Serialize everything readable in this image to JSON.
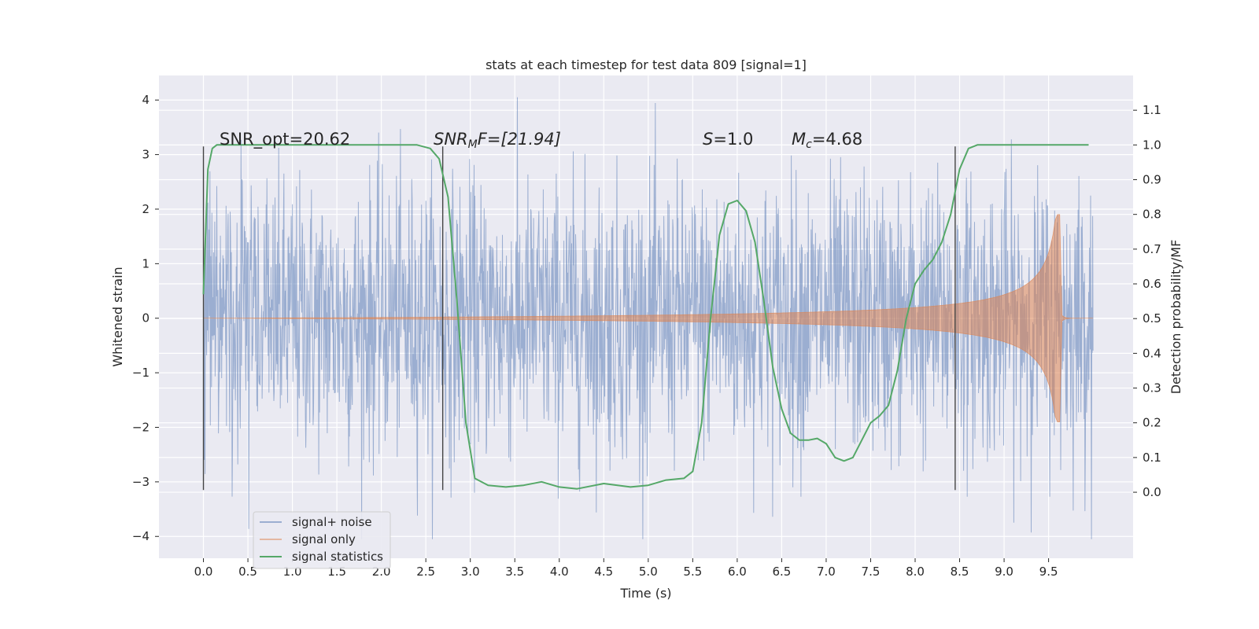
{
  "chart_data": {
    "type": "line",
    "title": "stats at each timestep for test data 809 [signal=1]",
    "xlabel": "Time (s)",
    "ylabel_left": "Whitened strain",
    "ylabel_right": "Detection probability/MF",
    "xlim": [
      -0.5,
      10.45
    ],
    "ylim_left": [
      -4.4,
      4.45
    ],
    "ylim_right": [
      -0.19,
      1.2
    ],
    "x_ticks": [
      "0.0",
      "0.5",
      "1.0",
      "1.5",
      "2.0",
      "2.5",
      "3.0",
      "3.5",
      "4.0",
      "4.5",
      "5.0",
      "5.5",
      "6.0",
      "6.5",
      "7.0",
      "7.5",
      "8.0",
      "8.5",
      "9.0",
      "9.5"
    ],
    "y_left_ticks": [
      "4",
      "3",
      "2",
      "1",
      "0",
      "−1",
      "−2",
      "−3",
      "−4"
    ],
    "y_right_ticks": [
      "1.1",
      "1.0",
      "0.9",
      "0.8",
      "0.7",
      "0.6",
      "0.5",
      "0.4",
      "0.3",
      "0.2",
      "0.1",
      "0.0"
    ],
    "grid": true,
    "legend_position": "lower-left",
    "annotations": {
      "snr_opt": "SNR_opt=20.62",
      "snr_mf_main": "SNR",
      "snr_mf_sub": "M",
      "snr_mf_tail": "F=[21.94]",
      "s_main": "S",
      "s_tail": "=1.0",
      "mc_main": "M",
      "mc_sub": "c",
      "mc_tail": "=4.68"
    },
    "vertical_markers_s": [
      0.0,
      2.69,
      8.45
    ],
    "series": [
      {
        "name": "signal+ noise",
        "color": "#4c72b0",
        "description_level": "noisy strain, envelope roughly ±1.5 to ±3.5, peaks up to ±4",
        "duration_s": 10.0
      },
      {
        "name": "signal only",
        "color": "#dd8452",
        "chirp": {
          "t_start": 0.0,
          "t_merge": 9.65,
          "amp_end": 1.9
        }
      },
      {
        "name": "signal statistics",
        "color": "#55a868",
        "x": [
          0.0,
          0.05,
          0.1,
          0.15,
          0.2,
          0.5,
          1.0,
          1.5,
          2.0,
          2.4,
          2.55,
          2.65,
          2.75,
          2.85,
          2.95,
          3.05,
          3.2,
          3.4,
          3.6,
          3.8,
          4.0,
          4.2,
          4.5,
          4.8,
          5.0,
          5.2,
          5.4,
          5.5,
          5.6,
          5.7,
          5.8,
          5.9,
          6.0,
          6.1,
          6.2,
          6.3,
          6.4,
          6.5,
          6.6,
          6.7,
          6.8,
          6.9,
          7.0,
          7.1,
          7.2,
          7.3,
          7.4,
          7.5,
          7.6,
          7.7,
          7.8,
          7.9,
          8.0,
          8.1,
          8.2,
          8.3,
          8.4,
          8.5,
          8.6,
          8.7,
          8.8,
          9.0,
          9.5,
          9.95
        ],
        "values": [
          0.57,
          0.93,
          0.99,
          1.0,
          1.0,
          1.0,
          1.0,
          1.0,
          1.0,
          1.0,
          0.99,
          0.96,
          0.85,
          0.55,
          0.2,
          0.04,
          0.02,
          0.015,
          0.02,
          0.03,
          0.015,
          0.01,
          0.025,
          0.015,
          0.02,
          0.035,
          0.04,
          0.06,
          0.2,
          0.5,
          0.74,
          0.83,
          0.84,
          0.81,
          0.72,
          0.55,
          0.36,
          0.24,
          0.17,
          0.15,
          0.15,
          0.155,
          0.14,
          0.1,
          0.09,
          0.1,
          0.15,
          0.2,
          0.22,
          0.25,
          0.35,
          0.5,
          0.6,
          0.64,
          0.67,
          0.72,
          0.8,
          0.93,
          0.99,
          1.0,
          1.0,
          1.0,
          1.0,
          1.0
        ]
      }
    ]
  }
}
